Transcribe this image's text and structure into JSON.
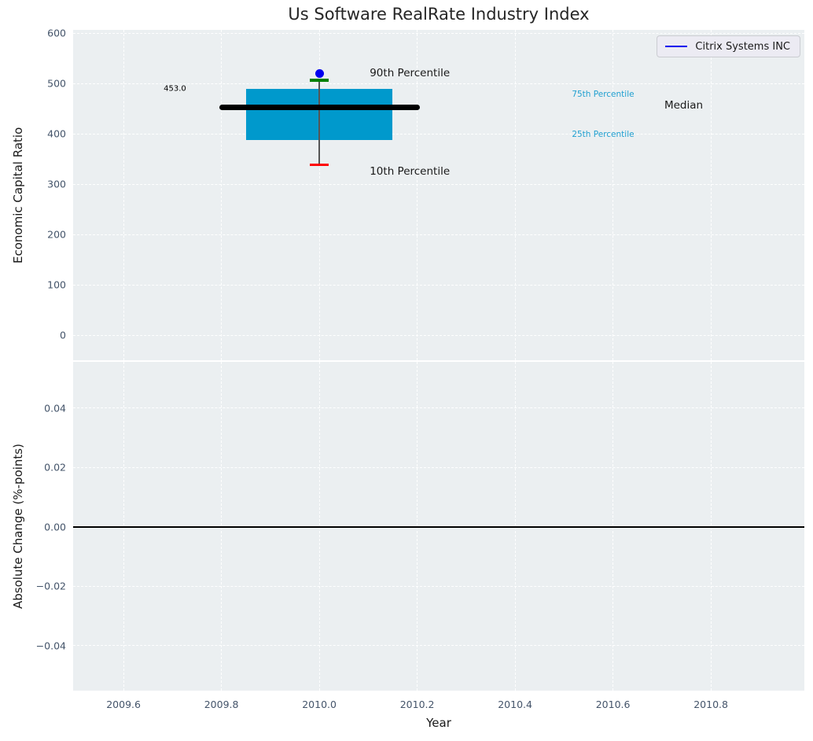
{
  "styles": {
    "axes_background": "#ebeff1",
    "grid_color": "#ffffff",
    "tick_color": "#44546a",
    "label_color": "#1a1a1a",
    "title_color": "#262626"
  },
  "chart_data": [
    {
      "type": "box",
      "title": "Us Software RealRate Industry Index",
      "ylabel": "Economic Capital Ratio",
      "xlim": [
        2009.497,
        2010.991
      ],
      "ylim": [
        -50,
        606.25
      ],
      "grid": true,
      "yticks": {
        "values": [
          600,
          500,
          400,
          300,
          200,
          100,
          0
        ],
        "labels": [
          "600",
          "500",
          "400",
          "300",
          "200",
          "100",
          "0"
        ]
      },
      "legend": {
        "label": "Citrix Systems INC",
        "line_color": "#0000ee",
        "position": "upper right"
      },
      "box": {
        "year": 2010.0,
        "p10": 338,
        "p25": 388,
        "median": 453,
        "p75": 489,
        "p90": 506,
        "box_x_range": [
          2009.85,
          2010.15
        ],
        "median_line_x_range": [
          2009.795,
          2010.205
        ],
        "cap_half_width": 0.019,
        "colors": {
          "box": "#0099cc",
          "median": "#000000",
          "p90_cap": "#007f00",
          "p10_cap": "#ff0000",
          "whisker": "#555555"
        }
      },
      "company_point": {
        "name": "Citrix Systems INC",
        "x": 2010.0,
        "y": 519,
        "color": "#0000ee"
      },
      "annotations": {
        "median_value": {
          "text": "453.0",
          "x": 2009.682,
          "y": 489,
          "size": 10,
          "color": "#000000"
        },
        "p90_label": {
          "text": "90th Percentile",
          "x": 2010.103,
          "y": 520,
          "size": 13.5,
          "color": "#1a1a1a"
        },
        "p10_label": {
          "text": "10th Percentile",
          "x": 2010.103,
          "y": 325,
          "size": 13.5,
          "color": "#1a1a1a"
        },
        "p75_label": {
          "text": "75th Percentile",
          "x": 2010.516,
          "y": 478,
          "size": 10.5,
          "color": "#1f9fd0"
        },
        "p25_label": {
          "text": "25th Percentile",
          "x": 2010.516,
          "y": 399,
          "size": 10.5,
          "color": "#1f9fd0"
        },
        "median_label": {
          "text": "Median",
          "x": 2010.705,
          "y": 456,
          "size": 13.5,
          "color": "#1a1a1a"
        }
      }
    },
    {
      "type": "line",
      "ylabel": "Absolute Change (%-points)",
      "xlabel": "Year",
      "xlim": [
        2009.497,
        2010.991
      ],
      "ylim": [
        -0.0551,
        0.0556
      ],
      "grid": true,
      "yticks": {
        "values": [
          0.04,
          0.02,
          0,
          -0.02,
          -0.04
        ],
        "labels": [
          "0.04",
          "0.02",
          "0.00",
          "−0.02",
          "−0.04"
        ]
      },
      "xticks": {
        "values": [
          2009.6,
          2009.8,
          2010.0,
          2010.2,
          2010.4,
          2010.6,
          2010.8
        ],
        "labels": [
          "2009.6",
          "2009.8",
          "2010.0",
          "2010.2",
          "2010.4",
          "2010.6",
          "2010.8"
        ]
      },
      "zero_line": {
        "y": 0.0,
        "color": "#000000"
      },
      "series": []
    }
  ]
}
